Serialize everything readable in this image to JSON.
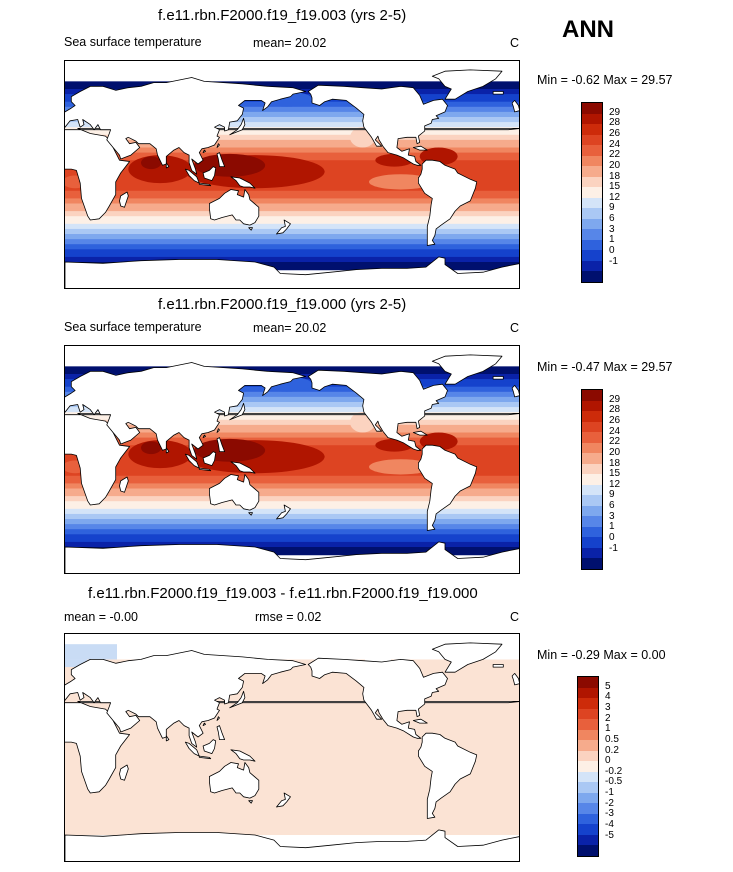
{
  "season": "ANN",
  "panels": [
    {
      "title": "f.e11.rbn.F2000.f19_f19.003 (yrs 2-5)",
      "left_label": "Sea surface temperature",
      "mid_label": "mean=  20.02",
      "unit": "C",
      "minmax": "Min =  -0.62 Max =  29.57",
      "levels": [
        "29",
        "28",
        "26",
        "24",
        "22",
        "20",
        "18",
        "15",
        "12",
        "9",
        "6",
        "3",
        "1",
        "0",
        "-1"
      ],
      "colors": [
        "#8b0a00",
        "#b01500",
        "#cd2b0a",
        "#dd4422",
        "#e8603c",
        "#f08660",
        "#f6ab8c",
        "#fbd3c0",
        "#fdf0e6",
        "#d4e4f8",
        "#aac8f4",
        "#7ea8ee",
        "#5786e8",
        "#2f62dd",
        "#1542cc",
        "#0a22a8",
        "#00106e"
      ]
    },
    {
      "title": "f.e11.rbn.F2000.f19_f19.000 (yrs 2-5)",
      "left_label": "Sea surface temperature",
      "mid_label": "mean=  20.02",
      "unit": "C",
      "minmax": "Min =  -0.47 Max =  29.57",
      "levels": [
        "29",
        "28",
        "26",
        "24",
        "22",
        "20",
        "18",
        "15",
        "12",
        "9",
        "6",
        "3",
        "1",
        "0",
        "-1"
      ],
      "colors": [
        "#8b0a00",
        "#b01500",
        "#cd2b0a",
        "#dd4422",
        "#e8603c",
        "#f08660",
        "#f6ab8c",
        "#fbd3c0",
        "#fdf0e6",
        "#d4e4f8",
        "#aac8f4",
        "#7ea8ee",
        "#5786e8",
        "#2f62dd",
        "#1542cc",
        "#0a22a8",
        "#00106e"
      ]
    },
    {
      "title": "f.e11.rbn.F2000.f19_f19.003 - f.e11.rbn.F2000.f19_f19.000",
      "left_label": "mean =  -0.00",
      "mid_label": "rmse =   0.02",
      "unit": "C",
      "minmax": "Min =  -0.29 Max =   0.00",
      "levels": [
        "5",
        "4",
        "3",
        "2",
        "1",
        "0.5",
        "0.2",
        "0",
        "-0.2",
        "-0.5",
        "-1",
        "-2",
        "-3",
        "-4",
        "-5"
      ],
      "colors": [
        "#8b0a00",
        "#b01500",
        "#cd2b0a",
        "#dd4422",
        "#e8603c",
        "#f08660",
        "#f6ab8c",
        "#fbd3c0",
        "#fdf0e6",
        "#d4e4f8",
        "#aac8f4",
        "#7ea8ee",
        "#5786e8",
        "#2f62dd",
        "#1542cc",
        "#0a22a8",
        "#00106e"
      ]
    }
  ],
  "chart_data": [
    {
      "type": "heatmap",
      "title": "f.e11.rbn.F2000.f19_f19.003 (yrs 2-5)",
      "variable": "Sea surface temperature",
      "units": "C",
      "mean": 20.02,
      "min": -0.62,
      "max": 29.57,
      "contour_levels": [
        -1,
        0,
        1,
        3,
        6,
        9,
        12,
        15,
        18,
        20,
        22,
        24,
        26,
        28,
        29
      ]
    },
    {
      "type": "heatmap",
      "title": "f.e11.rbn.F2000.f19_f19.000 (yrs 2-5)",
      "variable": "Sea surface temperature",
      "units": "C",
      "mean": 20.02,
      "min": -0.47,
      "max": 29.57,
      "contour_levels": [
        -1,
        0,
        1,
        3,
        6,
        9,
        12,
        15,
        18,
        20,
        22,
        24,
        26,
        28,
        29
      ]
    },
    {
      "type": "heatmap",
      "title": "f.e11.rbn.F2000.f19_f19.003 - f.e11.rbn.F2000.f19_f19.000",
      "units": "C",
      "mean": -0.0,
      "rmse": 0.02,
      "min": -0.29,
      "max": 0.0,
      "contour_levels": [
        -5,
        -4,
        -3,
        -2,
        -1,
        -0.5,
        -0.2,
        0,
        0.2,
        0.5,
        1,
        2,
        3,
        4,
        5
      ]
    }
  ]
}
